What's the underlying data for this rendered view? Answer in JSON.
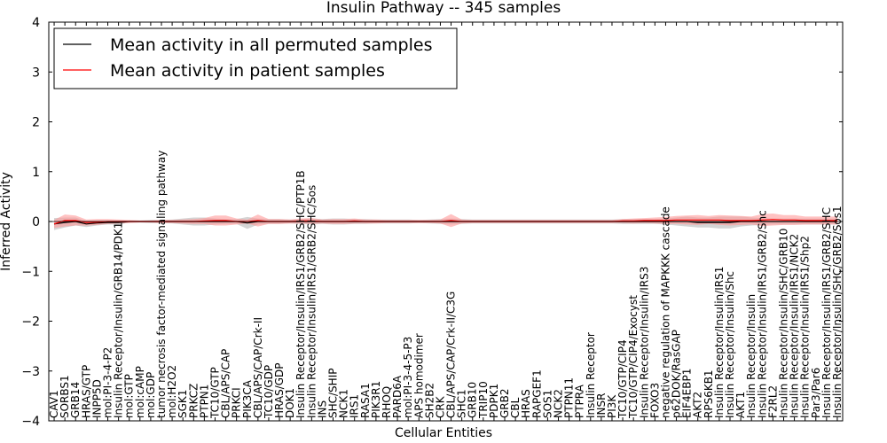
{
  "chart_data": {
    "type": "line",
    "title": "Insulin Pathway -- 345 samples",
    "xlabel": "Cellular Entities",
    "ylabel": "Inferred Activity",
    "ylim": [
      -4,
      4
    ],
    "yticks": [
      "4",
      "3",
      "2",
      "1",
      "0",
      "−1",
      "−2",
      "−3",
      "−4"
    ],
    "ytick_values": [
      4,
      3,
      2,
      1,
      0,
      -1,
      -2,
      -3,
      -4
    ],
    "legend_location": "top-left",
    "categories": [
      "CAV1",
      "SORBS1",
      "GRB14",
      "HRAS/GTP",
      "INPP5D",
      "mol:PI-3-4-P2",
      "Insulin Receptor/Insulin/GRB14/PDK1",
      "mol:GTP",
      "mol:cAMP",
      "mol:GDP",
      "tumor necrosis factor-mediated signaling pathway",
      "mol:H2O2",
      "SGK1",
      "PRKCZ",
      "PTPN1",
      "TC10/GTP",
      "CBL/APS/CAP",
      "PRKCI",
      "PIK3CA",
      "CBL/APS/CAP/Crk-II",
      "TC10/GDP",
      "HRAS/GDP",
      "DOK1",
      "Insulin Receptor/Insulin/IRS1/GRB2/SHC/PTP1B",
      "Insulin Receptor/Insulin/IRS1/GRB2/SHC/Sos",
      "INS",
      "SHC/SHIP",
      "NCK1",
      "IRS1",
      "RASA1",
      "PIK3R1",
      "RHOQ",
      "PARD6A",
      "mol:PI-3-4-5-P3",
      "APS homodimer",
      "SH2B2",
      "CRK",
      "CBL/APS/CAP/Crk-II/C3G",
      "SHC1",
      "GRB10",
      "TRIP10",
      "PDPK1",
      "GRB2",
      "CBL",
      "HRAS",
      "RAPGEF1",
      "SOS1",
      "NCK2",
      "PTPN11",
      "PTPRA",
      "Insulin Receptor",
      "INSR",
      "PI3K",
      "TC10/GTP/CIP4",
      "TC10/GTP/CIP4/Exocyst",
      "Insulin Receptor/Insulin/IRS3",
      "FOXO3",
      "negative regulation of MAPKKK cascade",
      "p62DOK/RasGAP",
      "EIF4EBP1",
      "AKT2",
      "RPS6KB1",
      "Insulin Receptor/Insulin/IRS1",
      "Insulin Receptor/Insulin/Shc",
      "AKT1",
      "Insulin Receptor/Insulin",
      "Insulin Receptor/Insulin/IRS1/GRB2/Shc",
      "F2RL2",
      "Insulin Receptor/Insulin/SHC/GRB10",
      "Insulin Receptor/Insulin/IRS1/NCK2",
      "Insulin Receptor/Insulin/IRS1/Shp2",
      "Par3/Par6",
      "Insulin Receptor/Insulin/IRS1/GRB2/SHC",
      "Insulin Receptor/Insulin/SHC/GRB2/Sos1"
    ],
    "series": [
      {
        "name": "Mean activity in all permuted samples",
        "color": "#000000",
        "band_color": "#b0b0b0",
        "values": [
          -0.05,
          -0.02,
          0.0,
          -0.05,
          -0.03,
          -0.02,
          -0.02,
          0,
          0,
          0,
          0,
          0,
          0,
          0,
          0,
          0,
          0,
          0,
          -0.03,
          0,
          0,
          0,
          0,
          0,
          0,
          0,
          0,
          0,
          0,
          0,
          0,
          0,
          0,
          0,
          0,
          0,
          0,
          0,
          0,
          0,
          0,
          0,
          0,
          0,
          0,
          0,
          0,
          0,
          0,
          0,
          0,
          0,
          0,
          0,
          0,
          0,
          0,
          0,
          0,
          0,
          -0.02,
          -0.02,
          -0.02,
          -0.02,
          0,
          0,
          0,
          0,
          0,
          0,
          0,
          0,
          0,
          0
        ],
        "band_halfwidth": [
          0.12,
          0.1,
          0.08,
          0.06,
          0.05,
          0.04,
          0.04,
          0.02,
          0.02,
          0.03,
          0.03,
          0.04,
          0.06,
          0.08,
          0.08,
          0.06,
          0.05,
          0.05,
          0.12,
          0.06,
          0.05,
          0.05,
          0.04,
          0.05,
          0.06,
          0.05,
          0.06,
          0.06,
          0.05,
          0.05,
          0.04,
          0.04,
          0.04,
          0.04,
          0.03,
          0.04,
          0.05,
          0.06,
          0.05,
          0.04,
          0.04,
          0.04,
          0.04,
          0.04,
          0.04,
          0.04,
          0.04,
          0.04,
          0.04,
          0.04,
          0.04,
          0.04,
          0.04,
          0.05,
          0.05,
          0.05,
          0.05,
          0.06,
          0.08,
          0.1,
          0.1,
          0.1,
          0.12,
          0.12,
          0.1,
          0.08,
          0.07,
          0.06,
          0.06,
          0.06,
          0.06,
          0.06,
          0.06,
          0.06
        ]
      },
      {
        "name": "Mean activity in patient samples",
        "color": "#ff0000",
        "band_color": "#ff9a9a",
        "values": [
          -0.05,
          0.02,
          0.02,
          -0.02,
          -0.01,
          0.0,
          0.0,
          0,
          0,
          0,
          0.0,
          0.0,
          0.0,
          0.0,
          0.01,
          0.02,
          0.02,
          0.0,
          0.0,
          0.02,
          0.0,
          0.0,
          0.0,
          0.01,
          0.01,
          0.0,
          0.0,
          0.0,
          0.01,
          0.0,
          0.0,
          0.0,
          0.0,
          0.0,
          0.0,
          0.0,
          0.0,
          0.02,
          0.0,
          0.0,
          0.0,
          0.0,
          0.0,
          0.0,
          0.0,
          0.0,
          0.0,
          0.0,
          0.0,
          0.0,
          0.0,
          0.0,
          0.0,
          0.01,
          0.01,
          0.02,
          0.02,
          0.02,
          0.03,
          0.03,
          0.03,
          0.03,
          0.03,
          0.02,
          0.02,
          0.02,
          0.03,
          0.04,
          0.03,
          0.03,
          0.02,
          0.02,
          0.02,
          0.02
        ],
        "band_halfwidth": [
          0.08,
          0.12,
          0.1,
          0.06,
          0.06,
          0.05,
          0.04,
          0.03,
          0.02,
          0.02,
          0.03,
          0.03,
          0.04,
          0.05,
          0.06,
          0.1,
          0.1,
          0.06,
          0.04,
          0.12,
          0.05,
          0.05,
          0.04,
          0.05,
          0.06,
          0.04,
          0.05,
          0.05,
          0.05,
          0.04,
          0.04,
          0.03,
          0.03,
          0.03,
          0.03,
          0.03,
          0.04,
          0.13,
          0.04,
          0.03,
          0.03,
          0.03,
          0.03,
          0.03,
          0.03,
          0.03,
          0.03,
          0.03,
          0.03,
          0.03,
          0.03,
          0.03,
          0.03,
          0.04,
          0.05,
          0.05,
          0.06,
          0.07,
          0.08,
          0.09,
          0.1,
          0.08,
          0.1,
          0.1,
          0.09,
          0.08,
          0.12,
          0.12,
          0.1,
          0.1,
          0.08,
          0.08,
          0.08,
          0.08
        ]
      }
    ]
  }
}
